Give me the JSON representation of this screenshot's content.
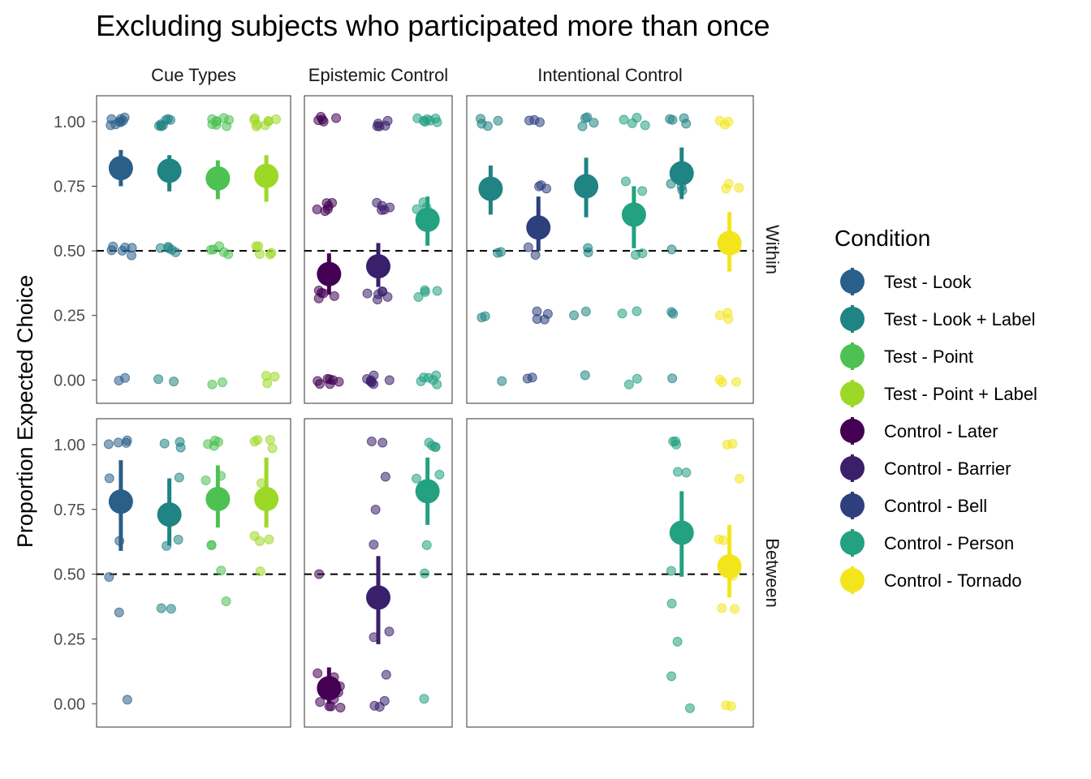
{
  "chart_data": {
    "type": "scatter",
    "title": "Excluding subjects who participated more than once",
    "ylabel": "Proportion Expected Choice",
    "ylim": [
      -0.09,
      1.1
    ],
    "yticks": [
      "0.00",
      "0.25",
      "0.50",
      "0.75",
      "1.00"
    ],
    "reference_line": 0.5,
    "grid": false,
    "legend_position": "right",
    "legend_title": "Condition",
    "columns": [
      "Cue Types",
      "Epistemic Control",
      "Intentional Control"
    ],
    "rows": [
      "Within",
      "Between"
    ],
    "conditions": [
      {
        "name": "Test - Look",
        "color": "#2A5F8A"
      },
      {
        "name": "Test - Look + Label",
        "color": "#208384"
      },
      {
        "name": "Test - Point",
        "color": "#4DC152"
      },
      {
        "name": "Test - Point + Label",
        "color": "#9CD927"
      },
      {
        "name": "Control - Later",
        "color": "#440154"
      },
      {
        "name": "Control - Barrier",
        "color": "#3A1F6B"
      },
      {
        "name": "Control - Bell",
        "color": "#2E3F7E"
      },
      {
        "name": "Control - Person",
        "color": "#23A181"
      },
      {
        "name": "Control - Tornado",
        "color": "#F2E51C"
      }
    ],
    "panels": [
      {
        "column": "Cue Types",
        "row": "Within",
        "groups": [
          {
            "condition": "Test - Look",
            "mean": 0.82,
            "ci": [
              0.75,
              0.89
            ],
            "points": [
              1.0,
              1.0,
              1.0,
              1.0,
              1.0,
              1.0,
              1.0,
              1.0,
              0.5,
              0.5,
              0.5,
              0.5,
              0.5,
              0.5,
              0.0,
              0.0
            ]
          },
          {
            "condition": "Test - Look + Label",
            "mean": 0.81,
            "ci": [
              0.73,
              0.87
            ],
            "points": [
              1.0,
              1.0,
              1.0,
              1.0,
              1.0,
              1.0,
              1.0,
              0.5,
              0.5,
              0.5,
              0.5,
              0.5,
              0.0,
              0.0
            ]
          },
          {
            "condition": "Test - Point",
            "mean": 0.78,
            "ci": [
              0.7,
              0.85
            ],
            "points": [
              1.0,
              1.0,
              1.0,
              1.0,
              1.0,
              1.0,
              1.0,
              1.0,
              0.5,
              0.5,
              0.5,
              0.5,
              0.5,
              0.0,
              0.0
            ]
          },
          {
            "condition": "Test - Point + Label",
            "mean": 0.79,
            "ci": [
              0.69,
              0.87
            ],
            "points": [
              1.0,
              1.0,
              1.0,
              1.0,
              1.0,
              1.0,
              1.0,
              1.0,
              0.5,
              0.5,
              0.5,
              0.5,
              0.5,
              0.0,
              0.0,
              0.0
            ]
          }
        ]
      },
      {
        "column": "Epistemic Control",
        "row": "Within",
        "groups": [
          {
            "condition": "Control - Later",
            "mean": 0.41,
            "ci": [
              0.33,
              0.49
            ],
            "points": [
              1.0,
              1.0,
              1.0,
              1.0,
              1.0,
              0.67,
              0.67,
              0.67,
              0.67,
              0.67,
              0.67,
              0.33,
              0.33,
              0.33,
              0.33,
              0.33,
              0.0,
              0.0,
              0.0,
              0.0,
              0.0,
              0.0,
              0.0
            ]
          },
          {
            "condition": "Control - Barrier",
            "mean": 0.44,
            "ci": [
              0.36,
              0.53
            ],
            "points": [
              1.0,
              1.0,
              1.0,
              1.0,
              1.0,
              0.67,
              0.67,
              0.67,
              0.67,
              0.67,
              0.33,
              0.33,
              0.33,
              0.33,
              0.33,
              0.33,
              0.0,
              0.0,
              0.0,
              0.0,
              0.0,
              0.0,
              0.0
            ]
          },
          {
            "condition": "Control - Person",
            "mean": 0.62,
            "ci": [
              0.52,
              0.71
            ],
            "points": [
              1.0,
              1.0,
              1.0,
              1.0,
              1.0,
              1.0,
              1.0,
              0.67,
              0.67,
              0.67,
              0.33,
              0.33,
              0.33,
              0.33,
              0.0,
              0.0,
              0.0,
              0.0,
              0.0,
              0.0
            ]
          }
        ]
      },
      {
        "column": "Intentional Control",
        "row": "Within",
        "groups": [
          {
            "condition": "Test - Look + Label",
            "mean": 0.74,
            "ci": [
              0.64,
              0.83
            ],
            "points": [
              1.0,
              1.0,
              1.0,
              1.0,
              0.75,
              0.75,
              0.75,
              0.5,
              0.5,
              0.25,
              0.25,
              0.0
            ]
          },
          {
            "condition": "Control - Bell",
            "mean": 0.59,
            "ci": [
              0.5,
              0.71
            ],
            "points": [
              1.0,
              1.0,
              1.0,
              0.75,
              0.75,
              0.75,
              0.5,
              0.5,
              0.25,
              0.25,
              0.25,
              0.25,
              0.0,
              0.0
            ]
          },
          {
            "condition": "Test - Look + Label",
            "mean": 0.75,
            "ci": [
              0.63,
              0.86
            ],
            "points": [
              1.0,
              1.0,
              1.0,
              1.0,
              0.75,
              0.75,
              0.5,
              0.5,
              0.25,
              0.25,
              0.0
            ]
          },
          {
            "condition": "Control - Person",
            "mean": 0.64,
            "ci": [
              0.51,
              0.75
            ],
            "points": [
              1.0,
              1.0,
              1.0,
              1.0,
              0.75,
              0.75,
              0.5,
              0.5,
              0.25,
              0.25,
              0.0,
              0.0
            ]
          },
          {
            "condition": "Test - Look + Label",
            "mean": 0.8,
            "ci": [
              0.7,
              0.9
            ],
            "points": [
              1.0,
              1.0,
              1.0,
              1.0,
              0.75,
              0.75,
              0.75,
              0.5,
              0.25,
              0.25,
              0.0
            ]
          },
          {
            "condition": "Control - Tornado",
            "mean": 0.53,
            "ci": [
              0.42,
              0.65
            ],
            "points": [
              1.0,
              1.0,
              1.0,
              0.75,
              0.75,
              0.75,
              0.5,
              0.5,
              0.25,
              0.25,
              0.25,
              0.0,
              0.0,
              0.0
            ]
          }
        ]
      },
      {
        "column": "Cue Types",
        "row": "Between",
        "groups": [
          {
            "condition": "Test - Look",
            "mean": 0.78,
            "ci": [
              0.59,
              0.94
            ],
            "points": [
              1.0,
              1.0,
              1.0,
              1.0,
              0.87,
              0.63,
              0.5,
              0.36,
              0.0
            ]
          },
          {
            "condition": "Test - Look + Label",
            "mean": 0.73,
            "ci": [
              0.61,
              0.87
            ],
            "points": [
              1.0,
              1.0,
              1.0,
              0.88,
              0.63,
              0.62,
              0.38,
              0.37
            ]
          },
          {
            "condition": "Test - Point",
            "mean": 0.79,
            "ci": [
              0.68,
              0.92
            ],
            "points": [
              1.0,
              1.0,
              1.0,
              1.0,
              0.88,
              0.87,
              0.63,
              0.62,
              0.51,
              0.38
            ]
          },
          {
            "condition": "Test - Point + Label",
            "mean": 0.79,
            "ci": [
              0.68,
              0.95
            ],
            "points": [
              1.0,
              1.0,
              1.0,
              1.0,
              0.87,
              0.63,
              0.63,
              0.62,
              0.51
            ]
          }
        ]
      },
      {
        "column": "Epistemic Control",
        "row": "Between",
        "groups": [
          {
            "condition": "Control - Later",
            "mean": 0.06,
            "ci": [
              0.0,
              0.14
            ],
            "points": [
              0.5,
              0.12,
              0.11,
              0.06,
              0.05,
              0.0,
              0.0,
              0.0,
              0.0,
              0.0
            ]
          },
          {
            "condition": "Control - Barrier",
            "mean": 0.41,
            "ci": [
              0.23,
              0.57
            ],
            "points": [
              1.0,
              1.0,
              0.87,
              0.74,
              0.63,
              0.26,
              0.25,
              0.13,
              0.0,
              0.0,
              0.0
            ]
          },
          {
            "condition": "Control - Person",
            "mean": 0.82,
            "ci": [
              0.69,
              0.95
            ],
            "points": [
              1.0,
              1.0,
              1.0,
              1.0,
              0.88,
              0.87,
              0.61,
              0.49,
              0.01
            ]
          }
        ]
      },
      {
        "column": "Intentional Control",
        "row": "Between",
        "groups": [
          {
            "condition": "",
            "mean": null,
            "ci": null,
            "points": []
          },
          {
            "condition": "",
            "mean": null,
            "ci": null,
            "points": []
          },
          {
            "condition": "",
            "mean": null,
            "ci": null,
            "points": []
          },
          {
            "condition": "",
            "mean": null,
            "ci": null,
            "points": []
          },
          {
            "condition": "Control - Person",
            "mean": 0.66,
            "ci": [
              0.49,
              0.82
            ],
            "points": [
              1.0,
              1.0,
              1.0,
              0.88,
              0.88,
              0.5,
              0.39,
              0.24,
              0.11,
              0.0
            ]
          },
          {
            "condition": "Control - Tornado",
            "mean": 0.53,
            "ci": [
              0.41,
              0.69
            ],
            "points": [
              1.0,
              0.99,
              0.87,
              0.63,
              0.62,
              0.5,
              0.38,
              0.38,
              0.0,
              0.0
            ]
          }
        ]
      }
    ]
  }
}
